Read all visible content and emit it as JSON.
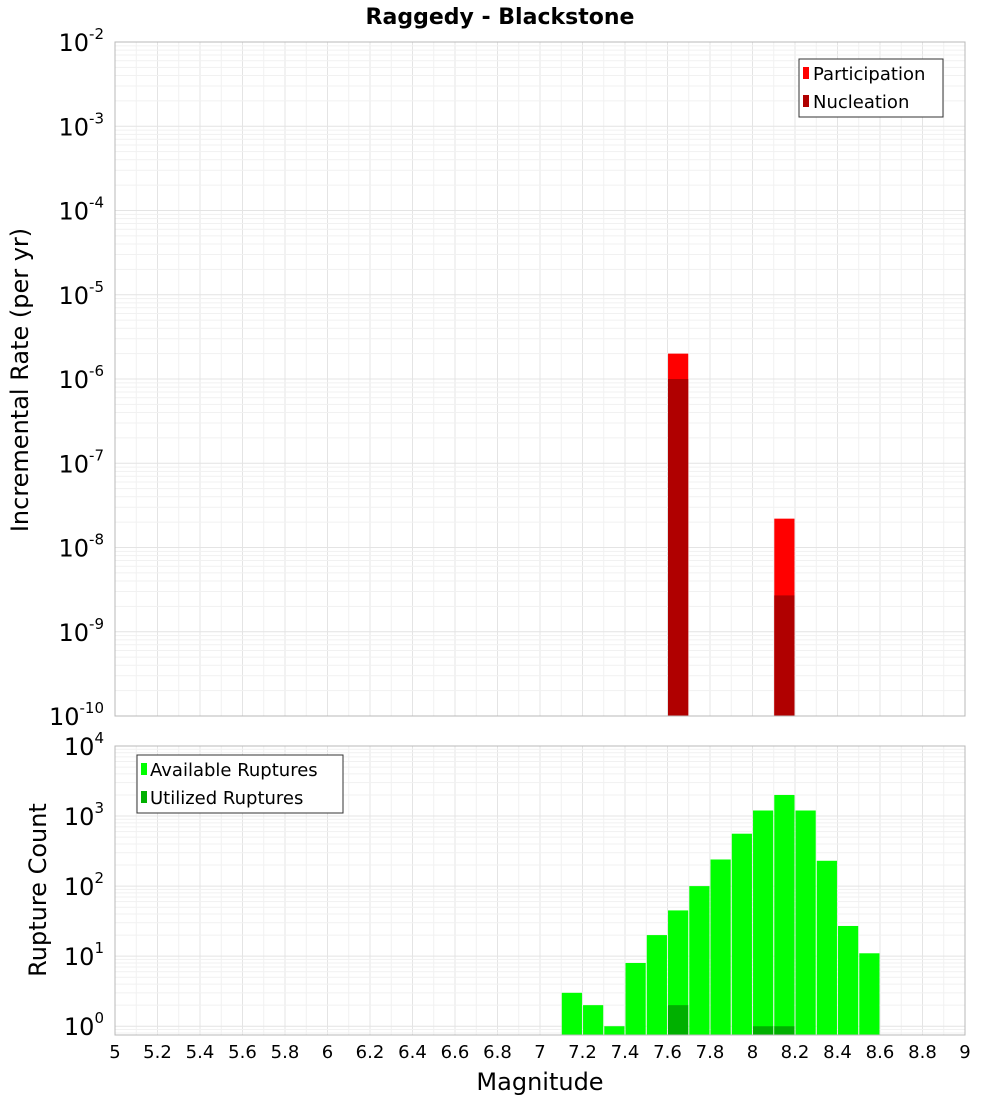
{
  "chart_data": [
    {
      "type": "bar",
      "title": "Raggedy - Blackstone",
      "xlabel": "Magnitude",
      "ylabel": "Incremental Rate (per yr)",
      "yscale": "log",
      "xlim": [
        5,
        9
      ],
      "ylim": [
        1e-10,
        0.01
      ],
      "y_tick_labels": [
        {
          "base": "10",
          "exp": "-10"
        },
        {
          "base": "10",
          "exp": "-9"
        },
        {
          "base": "10",
          "exp": "-8"
        },
        {
          "base": "10",
          "exp": "-7"
        },
        {
          "base": "10",
          "exp": "-6"
        },
        {
          "base": "10",
          "exp": "-5"
        },
        {
          "base": "10",
          "exp": "-4"
        },
        {
          "base": "10",
          "exp": "-3"
        },
        {
          "base": "10",
          "exp": "-2"
        }
      ],
      "grid": true,
      "legend": {
        "position": "top-right",
        "entries": [
          {
            "label": "Participation",
            "color": "#ff0000"
          },
          {
            "label": "Nucleation",
            "color": "#b00000"
          }
        ]
      },
      "series": [
        {
          "name": "Participation",
          "color": "#ff0000",
          "x": [
            7.65,
            8.15
          ],
          "values": [
            2e-06,
            2.2e-08
          ]
        },
        {
          "name": "Nucleation",
          "color": "#b00000",
          "x": [
            7.65,
            8.15
          ],
          "values": [
            1e-06,
            2.7e-09
          ]
        }
      ]
    },
    {
      "type": "bar",
      "xlabel": "Magnitude",
      "ylabel": "Rupture Count",
      "yscale": "log",
      "xlim": [
        5,
        9
      ],
      "ylim": [
        0.75,
        10000
      ],
      "x_tick_labels": [
        "5",
        "5.2",
        "5.4",
        "5.6",
        "5.8",
        "6",
        "6.2",
        "6.4",
        "6.6",
        "6.8",
        "7",
        "7.2",
        "7.4",
        "7.6",
        "7.8",
        "8",
        "8.2",
        "8.4",
        "8.6",
        "8.8",
        "9"
      ],
      "y_tick_labels": [
        {
          "base": "10",
          "exp": "0"
        },
        {
          "base": "10",
          "exp": "1"
        },
        {
          "base": "10",
          "exp": "2"
        },
        {
          "base": "10",
          "exp": "3"
        },
        {
          "base": "10",
          "exp": "4"
        }
      ],
      "grid": true,
      "legend": {
        "position": "top-left",
        "entries": [
          {
            "label": "Available Ruptures",
            "color": "#00ff00"
          },
          {
            "label": "Utilized Ruptures",
            "color": "#00b000"
          }
        ]
      },
      "series": [
        {
          "name": "Available Ruptures",
          "color": "#00ff00",
          "x": [
            7.15,
            7.25,
            7.35,
            7.45,
            7.55,
            7.65,
            7.75,
            7.85,
            7.95,
            8.05,
            8.15,
            8.25,
            8.35,
            8.45,
            8.55
          ],
          "values": [
            3,
            2,
            1,
            8,
            20,
            45,
            100,
            240,
            560,
            1200,
            2000,
            1200,
            230,
            27,
            11
          ]
        },
        {
          "name": "Utilized Ruptures",
          "color": "#00b000",
          "x": [
            7.65,
            8.05,
            8.15
          ],
          "values": [
            2,
            1,
            1
          ]
        }
      ]
    }
  ]
}
